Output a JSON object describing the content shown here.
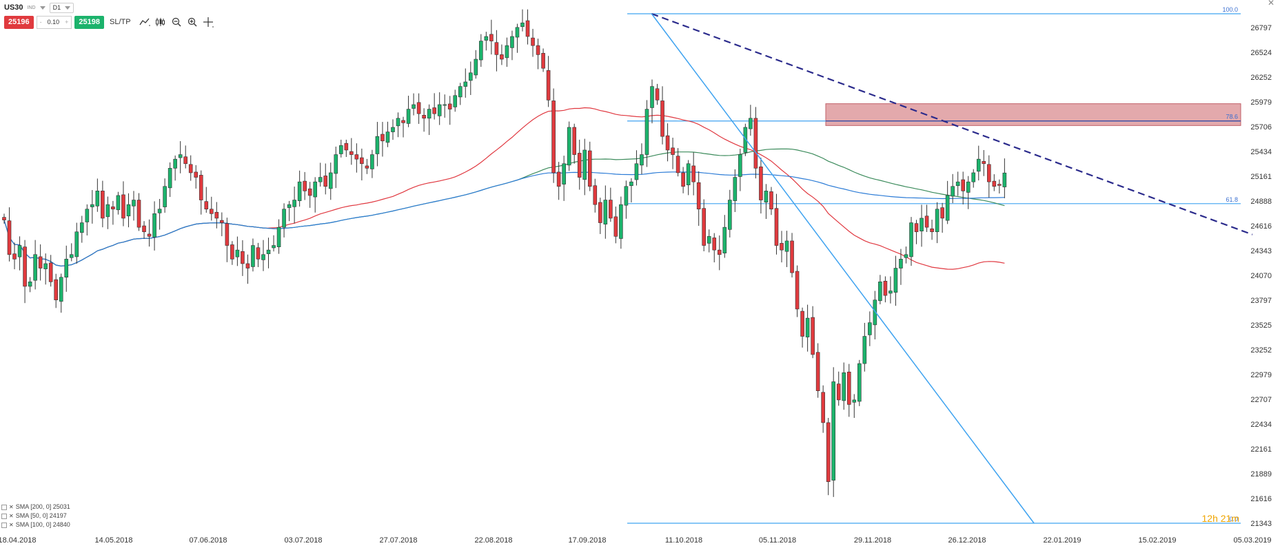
{
  "toolbar": {
    "symbol": "US30",
    "instrument_type": "IND",
    "timeframe": "D1",
    "sell_price": "25196",
    "lot_size": "0.10",
    "minus": "-",
    "plus": "+",
    "buy_price": "25198",
    "sltp_label": "SL/TP",
    "icons": [
      "line-chart-icon",
      "candle-chart-icon",
      "zoom-out-icon",
      "zoom-in-icon",
      "crosshair-icon"
    ]
  },
  "legend": [
    {
      "label": "SMA [200, 0] 25031",
      "color": "#2b7bd6"
    },
    {
      "label": "SMA [50, 0] 24197",
      "color": "#e0373f"
    },
    {
      "label": "SMA [100, 0] 24840",
      "color": "#3a8a5a"
    }
  ],
  "countdown": "12h 21m",
  "colors": {
    "bull": "#1cb36c",
    "bear": "#e03a3e",
    "fib": "#3fa3f0",
    "trend": "#2b2b8c",
    "zone": "#d98c90"
  },
  "chart_data": {
    "type": "candlestick",
    "symbol": "US30",
    "timeframe": "D1",
    "price_ticks": [
      26797,
      26524,
      26252,
      25979,
      25706,
      25434,
      25161,
      24888,
      24616,
      24343,
      24070,
      23797,
      23525,
      23252,
      22979,
      22707,
      22434,
      22161,
      21889,
      21616,
      21343
    ],
    "date_labels": [
      "18.04.2018",
      "14.05.2018",
      "07.06.2018",
      "03.07.2018",
      "27.07.2018",
      "22.08.2018",
      "17.09.2018",
      "11.10.2018",
      "05.11.2018",
      "29.11.2018",
      "26.12.2018",
      "22.01.2019",
      "15.02.2019",
      "05.03.2019"
    ],
    "fib_levels": [
      {
        "label": "100.0",
        "price": 26950
      },
      {
        "label": "78.6",
        "price": 25770
      },
      {
        "label": "61.8",
        "price": 24860
      },
      {
        "label": "0.0",
        "price": 21343
      }
    ],
    "resistance_zone": {
      "low": 25720,
      "high": 25960
    },
    "trendlines": [
      {
        "name": "dashed-resistance",
        "start": {
          "date": "03.10.2018",
          "price": 26950
        },
        "end": {
          "date": "05.03.2019",
          "price": 24520
        }
      },
      {
        "name": "support-diagonal",
        "start": {
          "date": "03.10.2018",
          "price": 26950
        },
        "end": {
          "date": "14.01.2019",
          "price": 21343
        }
      }
    ],
    "closes": [
      24680,
      24300,
      24250,
      24400,
      23950,
      24000,
      24300,
      24150,
      24200,
      24000,
      23800,
      24050,
      24250,
      24300,
      24550,
      24650,
      24800,
      24850,
      25000,
      24700,
      24850,
      24800,
      24950,
      24700,
      24850,
      24900,
      24600,
      24550,
      24500,
      24750,
      24800,
      25050,
      25250,
      25350,
      25400,
      25300,
      25200,
      25150,
      24900,
      24800,
      24750,
      24700,
      24650,
      24400,
      24250,
      24350,
      24200,
      24150,
      24400,
      24250,
      24300,
      24350,
      24400,
      24600,
      24800,
      24850,
      24900,
      25100,
      25000,
      24950,
      25100,
      25150,
      25050,
      25200,
      25400,
      25500,
      25450,
      25400,
      25350,
      25300,
      25250,
      25400,
      25600,
      25550,
      25650,
      25700,
      25800,
      25750,
      25900,
      25950,
      25850,
      25800,
      25900,
      25850,
      25950,
      25950,
      25900,
      26050,
      26150,
      26200,
      26300,
      26450,
      26650,
      26700,
      26650,
      26500,
      26450,
      26600,
      26700,
      26800,
      26850,
      26700,
      26600,
      26500,
      26350,
      26000,
      25200,
      25050,
      25300,
      25700,
      25400,
      25150,
      25450,
      25050,
      24850,
      24650,
      24900,
      24700,
      24500,
      24850,
      25050,
      25100,
      25300,
      25400,
      25900,
      26150,
      26000,
      25600,
      25450,
      25400,
      25200,
      25050,
      25300,
      25100,
      24800,
      24400,
      24500,
      24350,
      24300,
      24600,
      24900,
      25150,
      25400,
      25700,
      25800,
      25250,
      24900,
      25000,
      24800,
      24400,
      24350,
      24450,
      24100,
      23700,
      23400,
      23600,
      23200,
      22800,
      22450,
      21800,
      22900,
      22700,
      23000,
      22650,
      22700,
      23100,
      23400,
      23550,
      23800,
      24000,
      23850,
      23900,
      24150,
      24250,
      24300,
      24650,
      24550,
      24700,
      24600,
      24550,
      24800,
      24700,
      24950,
      25050,
      25100,
      25000,
      25100,
      25200,
      25350,
      25300,
      25100,
      25050,
      25060,
      25198
    ]
  }
}
